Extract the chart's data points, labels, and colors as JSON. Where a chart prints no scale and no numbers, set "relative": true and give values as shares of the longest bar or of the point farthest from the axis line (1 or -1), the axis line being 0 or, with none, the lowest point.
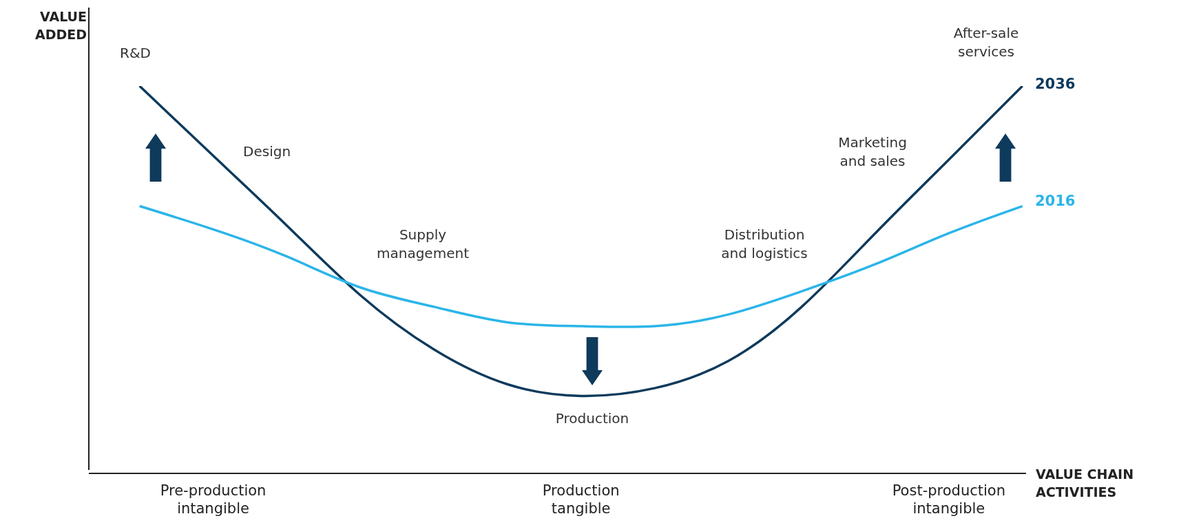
{
  "chart_data": {
    "type": "line",
    "relative": true,
    "xlabel": "VALUE CHAIN ACTIVITIES",
    "ylabel": "VALUE ADDED",
    "categories": [
      null,
      "Pre-production\nintangible",
      null,
      null,
      null,
      null,
      "Production\ntangible",
      null,
      null,
      null,
      null,
      "Post-production\nintangible",
      null
    ],
    "series": [
      {
        "name": "2036",
        "color": "#0e3a5c",
        "values": [
          1,
          0.82,
          0.64,
          0.46,
          0.32,
          0.23,
          0.2,
          0.22,
          0.29,
          0.43,
          0.62,
          0.81,
          1
        ]
      },
      {
        "name": "2016",
        "color": "#2bb5e8",
        "values": [
          0.69,
          0.63,
          0.56,
          0.48,
          0.43,
          0.39,
          0.38,
          0.38,
          0.41,
          0.47,
          0.54,
          0.62,
          0.69
        ]
      }
    ],
    "annotations": [
      "R&D",
      "Design",
      "Supply\nmanagement",
      "Production",
      "Distribution\nand logistics",
      "Marketing\nand sales",
      "After-sale\nservices"
    ],
    "marker": "none",
    "line_style": "solid"
  }
}
